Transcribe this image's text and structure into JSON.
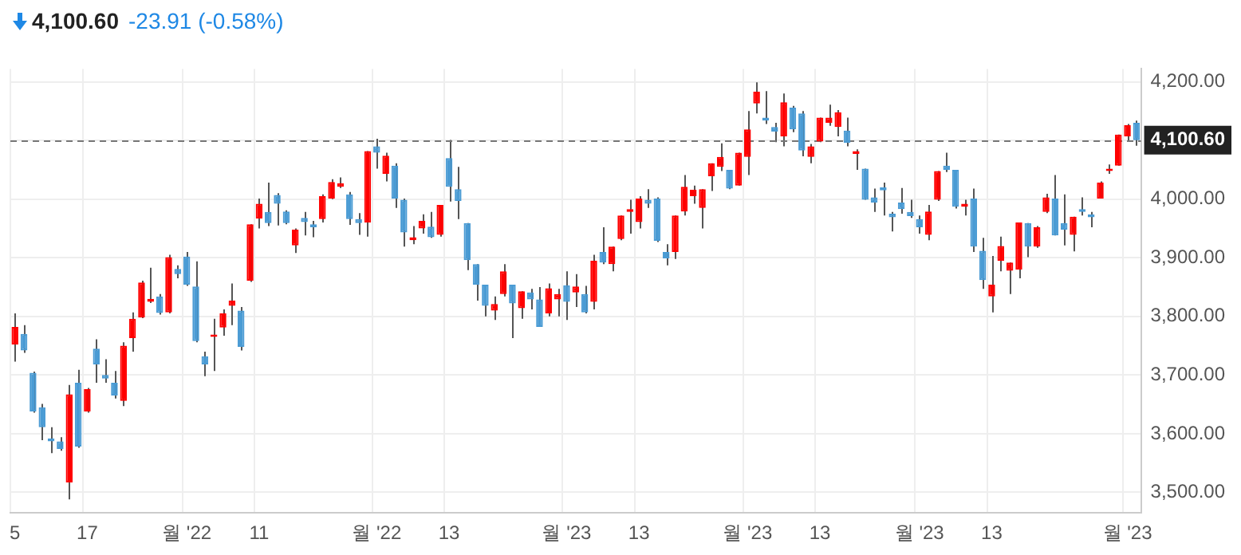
{
  "chart_data": {
    "type": "candlestick",
    "title": "4,100.60",
    "subtitle": "-23.91 (-0.58%)",
    "categories": [
      "5",
      null,
      null,
      null,
      null,
      null,
      null,
      null,
      "17",
      null,
      null,
      null,
      null,
      null,
      null,
      null,
      null,
      null,
      null,
      "월 '22",
      null,
      null,
      null,
      null,
      null,
      null,
      null,
      "11",
      null,
      null,
      null,
      null,
      null,
      null,
      null,
      null,
      null,
      null,
      null,
      null,
      "월 '22",
      null,
      null,
      null,
      null,
      null,
      null,
      null,
      "13",
      null,
      null,
      null,
      null,
      null,
      null,
      null,
      null,
      null,
      null,
      null,
      null,
      "월 '23",
      null,
      null,
      null,
      null,
      null,
      null,
      null,
      "13",
      null,
      null,
      null,
      null,
      null,
      null,
      null,
      null,
      null,
      null,
      null,
      "월 '23",
      null,
      null,
      null,
      null,
      null,
      null,
      null,
      "13",
      null,
      null,
      null,
      null,
      null,
      null,
      null,
      null,
      null,
      null,
      "월 '23",
      null,
      null,
      null,
      null,
      null,
      null,
      null,
      "13",
      null,
      null,
      null,
      null,
      null,
      null,
      null,
      null,
      null,
      null,
      null,
      null,
      null,
      null,
      "월 '23",
      null
    ],
    "ohlc": [
      [
        3752,
        3805,
        3723,
        3782
      ],
      [
        3770,
        3785,
        3738,
        3742
      ],
      [
        3704,
        3706,
        3636,
        3638
      ],
      [
        3645,
        3651,
        3589,
        3611
      ],
      [
        3592,
        3611,
        3567,
        3587
      ],
      [
        3587,
        3594,
        3571,
        3574
      ],
      [
        3517,
        3683,
        3488,
        3667
      ],
      [
        3687,
        3709,
        3576,
        3578
      ],
      [
        3638,
        3678,
        3636,
        3676
      ],
      [
        3745,
        3761,
        3687,
        3718
      ],
      [
        3700,
        3727,
        3687,
        3694
      ],
      [
        3687,
        3707,
        3660,
        3665
      ],
      [
        3656,
        3756,
        3647,
        3750
      ],
      [
        3763,
        3807,
        3740,
        3796
      ],
      [
        3798,
        3861,
        3797,
        3858
      ],
      [
        3825,
        3883,
        3823,
        3830
      ],
      [
        3834,
        3838,
        3803,
        3806
      ],
      [
        3807,
        3905,
        3805,
        3901
      ],
      [
        3881,
        3887,
        3865,
        3872
      ],
      [
        3902,
        3910,
        3852,
        3854
      ],
      [
        3851,
        3894,
        3756,
        3758
      ],
      [
        3732,
        3740,
        3698,
        3718
      ],
      [
        3765,
        3796,
        3707,
        3769
      ],
      [
        3781,
        3812,
        3767,
        3805
      ],
      [
        3818,
        3856,
        3785,
        3827
      ],
      [
        3810,
        3816,
        3742,
        3748
      ],
      [
        3861,
        3957,
        3859,
        3957
      ],
      [
        3967,
        4001,
        3950,
        3992
      ],
      [
        3978,
        4028,
        3954,
        3959
      ],
      [
        4007,
        4010,
        3955,
        3992
      ],
      [
        3979,
        3981,
        3957,
        3959
      ],
      [
        3921,
        3950,
        3908,
        3948
      ],
      [
        3968,
        3978,
        3938,
        3961
      ],
      [
        3957,
        3963,
        3935,
        3952
      ],
      [
        3966,
        4008,
        3960,
        4005
      ],
      [
        4001,
        4034,
        4000,
        4029
      ],
      [
        4021,
        4037,
        4019,
        4027
      ],
      [
        4008,
        4012,
        3956,
        3966
      ],
      [
        3966,
        3976,
        3939,
        3959
      ],
      [
        3960,
        4082,
        3936,
        4082
      ],
      [
        4090,
        4103,
        4052,
        4079
      ],
      [
        4043,
        4079,
        4030,
        4074
      ],
      [
        4057,
        4061,
        3985,
        4001
      ],
      [
        3999,
        4001,
        3919,
        3943
      ],
      [
        3930,
        3954,
        3923,
        3935
      ],
      [
        3950,
        3974,
        3941,
        3963
      ],
      [
        3953,
        3978,
        3934,
        3935
      ],
      [
        3939,
        3990,
        3936,
        3990
      ],
      [
        4070,
        4101,
        3996,
        4021
      ],
      [
        4017,
        4055,
        3966,
        3997
      ],
      [
        3959,
        3959,
        3879,
        3896
      ],
      [
        3889,
        3889,
        3827,
        3854
      ],
      [
        3854,
        3854,
        3800,
        3818
      ],
      [
        3810,
        3834,
        3794,
        3821
      ],
      [
        3838,
        3889,
        3834,
        3877
      ],
      [
        3854,
        3854,
        3763,
        3822
      ],
      [
        3814,
        3843,
        3796,
        3843
      ],
      [
        3841,
        3847,
        3812,
        3829
      ],
      [
        3829,
        3850,
        3782,
        3782
      ],
      [
        3805,
        3856,
        3800,
        3848
      ],
      [
        3829,
        3847,
        3800,
        3838
      ],
      [
        3853,
        3877,
        3794,
        3825
      ],
      [
        3841,
        3872,
        3816,
        3851
      ],
      [
        3838,
        3852,
        3805,
        3807
      ],
      [
        3825,
        3905,
        3812,
        3895
      ],
      [
        3910,
        3952,
        3889,
        3892
      ],
      [
        3889,
        3919,
        3877,
        3919
      ],
      [
        3932,
        3972,
        3930,
        3972
      ],
      [
        3978,
        3999,
        3941,
        3983
      ],
      [
        3961,
        4005,
        3950,
        4001
      ],
      [
        3999,
        4017,
        3985,
        3992
      ],
      [
        4001,
        4003,
        3927,
        3929
      ],
      [
        3910,
        3923,
        3887,
        3899
      ],
      [
        3910,
        3972,
        3898,
        3972
      ],
      [
        3979,
        4041,
        3972,
        4021
      ],
      [
        4005,
        4023,
        3992,
        4016
      ],
      [
        3985,
        4017,
        3950,
        4017
      ],
      [
        4039,
        4061,
        4014,
        4061
      ],
      [
        4055,
        4095,
        4048,
        4072
      ],
      [
        4050,
        4050,
        4017,
        4018
      ],
      [
        4023,
        4079,
        4023,
        4079
      ],
      [
        4072,
        4150,
        4041,
        4119
      ],
      [
        4163,
        4199,
        4146,
        4183
      ],
      [
        4139,
        4184,
        4128,
        4134
      ],
      [
        4123,
        4130,
        4097,
        4115
      ],
      [
        4107,
        4180,
        4090,
        4165
      ],
      [
        4156,
        4159,
        4114,
        4119
      ],
      [
        4146,
        4150,
        4073,
        4083
      ],
      [
        4072,
        4094,
        4061,
        4090
      ],
      [
        4098,
        4139,
        4097,
        4139
      ],
      [
        4130,
        4161,
        4125,
        4139
      ],
      [
        4123,
        4152,
        4107,
        4148
      ],
      [
        4117,
        4139,
        4090,
        4096
      ],
      [
        4077,
        4085,
        4050,
        4082
      ],
      [
        4052,
        4052,
        3999,
        3999
      ],
      [
        4003,
        4018,
        3978,
        3994
      ],
      [
        4020,
        4028,
        3972,
        4015
      ],
      [
        3975,
        3978,
        3945,
        3969
      ],
      [
        3994,
        4019,
        3975,
        3983
      ],
      [
        3978,
        3999,
        3968,
        3971
      ],
      [
        3966,
        3972,
        3941,
        3952
      ],
      [
        3939,
        3990,
        3930,
        3979
      ],
      [
        3999,
        4048,
        3997,
        4048
      ],
      [
        4057,
        4079,
        4046,
        4050
      ],
      [
        4050,
        4050,
        3984,
        3987
      ],
      [
        3987,
        3999,
        3972,
        3992
      ],
      [
        4001,
        4018,
        3910,
        3919
      ],
      [
        3912,
        3934,
        3847,
        3862
      ],
      [
        3834,
        3903,
        3807,
        3854
      ],
      [
        3895,
        3936,
        3877,
        3920
      ],
      [
        3878,
        3892,
        3838,
        3892
      ],
      [
        3880,
        3960,
        3865,
        3960
      ],
      [
        3959,
        3959,
        3901,
        3919
      ],
      [
        3919,
        3954,
        3917,
        3952
      ],
      [
        3978,
        4009,
        3976,
        4003
      ],
      [
        4001,
        4041,
        3938,
        3938
      ],
      [
        3959,
        4008,
        3921,
        3948
      ],
      [
        3939,
        3970,
        3911,
        3970
      ],
      [
        3983,
        4003,
        3972,
        3978
      ],
      [
        3974,
        3978,
        3952,
        3969
      ],
      [
        4001,
        4030,
        4001,
        4028
      ],
      [
        4048,
        4059,
        4043,
        4052
      ],
      [
        4057,
        4110,
        4057,
        4110
      ],
      [
        4107,
        4128,
        4098,
        4126
      ],
      [
        4130,
        4134,
        4091,
        4100.6
      ]
    ],
    "colors": [
      "#ff0000",
      "#4a9bd4",
      "#4a9bd4",
      "#4a9bd4",
      "#4a9bd4",
      "#4a9bd4",
      "#ff0000",
      "#4a9bd4",
      "#ff0000",
      "#4a9bd4",
      "#4a9bd4",
      "#4a9bd4",
      "#ff0000",
      "#ff0000",
      "#ff0000",
      "#ff0000",
      "#4a9bd4",
      "#ff0000",
      "#4a9bd4",
      "#4a9bd4",
      "#4a9bd4",
      "#4a9bd4",
      "#ff0000",
      "#ff0000",
      "#ff0000",
      "#4a9bd4",
      "#ff0000",
      "#ff0000",
      "#4a9bd4",
      "#4a9bd4",
      "#4a9bd4",
      "#ff0000",
      "#4a9bd4",
      "#4a9bd4",
      "#ff0000",
      "#ff0000",
      "#ff0000",
      "#4a9bd4",
      "#4a9bd4",
      "#ff0000",
      "#4a9bd4",
      "#ff0000",
      "#4a9bd4",
      "#4a9bd4",
      "#ff0000",
      "#ff0000",
      "#4a9bd4",
      "#ff0000",
      "#4a9bd4",
      "#4a9bd4",
      "#4a9bd4",
      "#4a9bd4",
      "#4a9bd4",
      "#ff0000",
      "#ff0000",
      "#4a9bd4",
      "#ff0000",
      "#4a9bd4",
      "#4a9bd4",
      "#ff0000",
      "#ff0000",
      "#4a9bd4",
      "#ff0000",
      "#4a9bd4",
      "#ff0000",
      "#4a9bd4",
      "#ff0000",
      "#ff0000",
      "#ff0000",
      "#ff0000",
      "#4a9bd4",
      "#4a9bd4",
      "#4a9bd4",
      "#ff0000",
      "#ff0000",
      "#ff0000",
      "#ff0000",
      "#ff0000",
      "#ff0000",
      "#4a9bd4",
      "#ff0000",
      "#ff0000",
      "#ff0000",
      "#4a9bd4",
      "#4a9bd4",
      "#ff0000",
      "#4a9bd4",
      "#4a9bd4",
      "#ff0000",
      "#ff0000",
      "#ff0000",
      "#ff0000",
      "#4a9bd4",
      "#ff0000",
      "#4a9bd4",
      "#4a9bd4",
      "#4a9bd4",
      "#4a9bd4",
      "#4a9bd4",
      "#4a9bd4",
      "#4a9bd4",
      "#ff0000",
      "#ff0000",
      "#4a9bd4",
      "#4a9bd4",
      "#ff0000",
      "#4a9bd4",
      "#4a9bd4",
      "#ff0000",
      "#ff0000",
      "#ff0000",
      "#ff0000",
      "#4a9bd4",
      "#ff0000",
      "#ff0000",
      "#4a9bd4",
      "#4a9bd4",
      "#ff0000",
      "#4a9bd4",
      "#4a9bd4",
      "#ff0000",
      "#ff0000",
      "#ff0000",
      "#ff0000",
      "#4a9bd4"
    ],
    "ylim": [
      3465,
      4222
    ],
    "yticks": [
      {
        "value": 3500,
        "label": "3,500.00"
      },
      {
        "value": 3600,
        "label": "3,600.00"
      },
      {
        "value": 3700,
        "label": "3,700.00"
      },
      {
        "value": 3800,
        "label": "3,800.00"
      },
      {
        "value": 3900,
        "label": "3,900.00"
      },
      {
        "value": 4000,
        "label": "4,000.00"
      },
      {
        "value": 4100,
        "label": null
      },
      {
        "value": 4200,
        "label": "4,200.00"
      }
    ],
    "ref_lines": [
      {
        "axis": "y",
        "value": 4100.6,
        "label": "4,100.60",
        "line_style": "dashed"
      }
    ],
    "grid": true
  }
}
